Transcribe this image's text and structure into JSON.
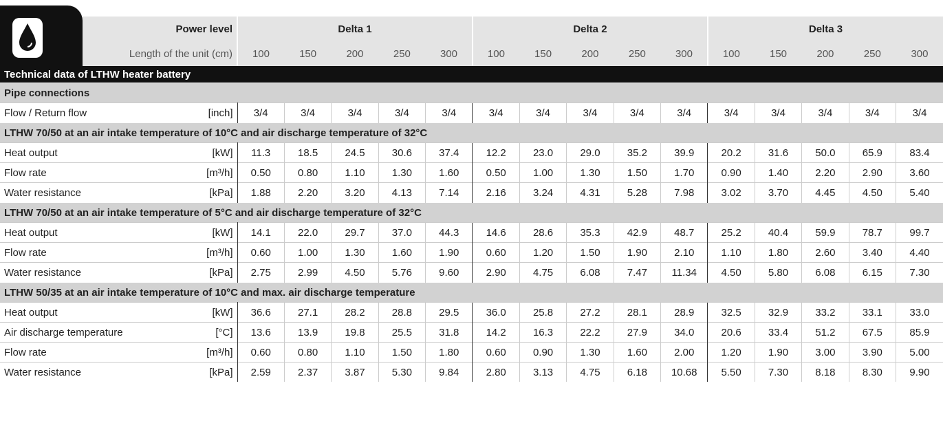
{
  "header": {
    "power_level": "Power level",
    "length_label": "Length of the unit (cm)",
    "groups": [
      "Delta 1",
      "Delta 2",
      "Delta 3"
    ],
    "lengths": [
      [
        100,
        150,
        200,
        250,
        300
      ],
      [
        100,
        150,
        200,
        250,
        300
      ],
      [
        100,
        150,
        200,
        250,
        300
      ]
    ]
  },
  "title": "Technical data of LTHW heater battery",
  "sections": [
    {
      "title": "Pipe connections",
      "rows": [
        {
          "label": "Flow / Return flow",
          "unit": "[inch]",
          "values": [
            "3/4",
            "3/4",
            "3/4",
            "3/4",
            "3/4",
            "3/4",
            "3/4",
            "3/4",
            "3/4",
            "3/4",
            "3/4",
            "3/4",
            "3/4",
            "3/4",
            "3/4"
          ]
        }
      ]
    },
    {
      "title": "LTHW 70/50 at an air intake temperature of 10°C and air discharge temperature of 32°C",
      "rows": [
        {
          "label": "Heat output",
          "unit": "[kW]",
          "values": [
            "11.3",
            "18.5",
            "24.5",
            "30.6",
            "37.4",
            "12.2",
            "23.0",
            "29.0",
            "35.2",
            "39.9",
            "20.2",
            "31.6",
            "50.0",
            "65.9",
            "83.4"
          ]
        },
        {
          "label": "Flow rate",
          "unit": "[m³/h]",
          "values": [
            "0.50",
            "0.80",
            "1.10",
            "1.30",
            "1.60",
            "0.50",
            "1.00",
            "1.30",
            "1.50",
            "1.70",
            "0.90",
            "1.40",
            "2.20",
            "2.90",
            "3.60"
          ]
        },
        {
          "label": "Water resistance",
          "unit": "[kPa]",
          "values": [
            "1.88",
            "2.20",
            "3.20",
            "4.13",
            "7.14",
            "2.16",
            "3.24",
            "4.31",
            "5.28",
            "7.98",
            "3.02",
            "3.70",
            "4.45",
            "4.50",
            "5.40"
          ]
        }
      ]
    },
    {
      "title": "LTHW 70/50 at an air intake temperature of 5°C and air discharge temperature of 32°C",
      "rows": [
        {
          "label": "Heat output",
          "unit": "[kW]",
          "values": [
            "14.1",
            "22.0",
            "29.7",
            "37.0",
            "44.3",
            "14.6",
            "28.6",
            "35.3",
            "42.9",
            "48.7",
            "25.2",
            "40.4",
            "59.9",
            "78.7",
            "99.7"
          ]
        },
        {
          "label": "Flow rate",
          "unit": "[m³/h]",
          "values": [
            "0.60",
            "1.00",
            "1.30",
            "1.60",
            "1.90",
            "0.60",
            "1.20",
            "1.50",
            "1.90",
            "2.10",
            "1.10",
            "1.80",
            "2.60",
            "3.40",
            "4.40"
          ]
        },
        {
          "label": "Water resistance",
          "unit": "[kPa]",
          "values": [
            "2.75",
            "2.99",
            "4.50",
            "5.76",
            "9.60",
            "2.90",
            "4.75",
            "6.08",
            "7.47",
            "11.34",
            "4.50",
            "5.80",
            "6.08",
            "6.15",
            "7.30"
          ]
        }
      ]
    },
    {
      "title": "LTHW 50/35 at an air intake temperature of 10°C and max. air discharge temperature",
      "rows": [
        {
          "label": "Heat output",
          "unit": "[kW]",
          "values": [
            "36.6",
            "27.1",
            "28.2",
            "28.8",
            "29.5",
            "36.0",
            "25.8",
            "27.2",
            "28.1",
            "28.9",
            "32.5",
            "32.9",
            "33.2",
            "33.1",
            "33.0"
          ]
        },
        {
          "label": "Air discharge temperature",
          "unit": "[°C]",
          "values": [
            "13.6",
            "13.9",
            "19.8",
            "25.5",
            "31.8",
            "14.2",
            "16.3",
            "22.2",
            "27.9",
            "34.0",
            "20.6",
            "33.4",
            "51.2",
            "67.5",
            "85.9"
          ]
        },
        {
          "label": "Flow rate",
          "unit": "[m³/h]",
          "values": [
            "0.60",
            "0.80",
            "1.10",
            "1.50",
            "1.80",
            "0.60",
            "0.90",
            "1.30",
            "1.60",
            "2.00",
            "1.20",
            "1.90",
            "3.00",
            "3.90",
            "5.00"
          ]
        },
        {
          "label": "Water resistance",
          "unit": "[kPa]",
          "values": [
            "2.59",
            "2.37",
            "3.87",
            "5.30",
            "9.84",
            "2.80",
            "3.13",
            "4.75",
            "6.18",
            "10.68",
            "5.50",
            "7.30",
            "8.18",
            "8.30",
            "9.90"
          ]
        }
      ]
    }
  ]
}
